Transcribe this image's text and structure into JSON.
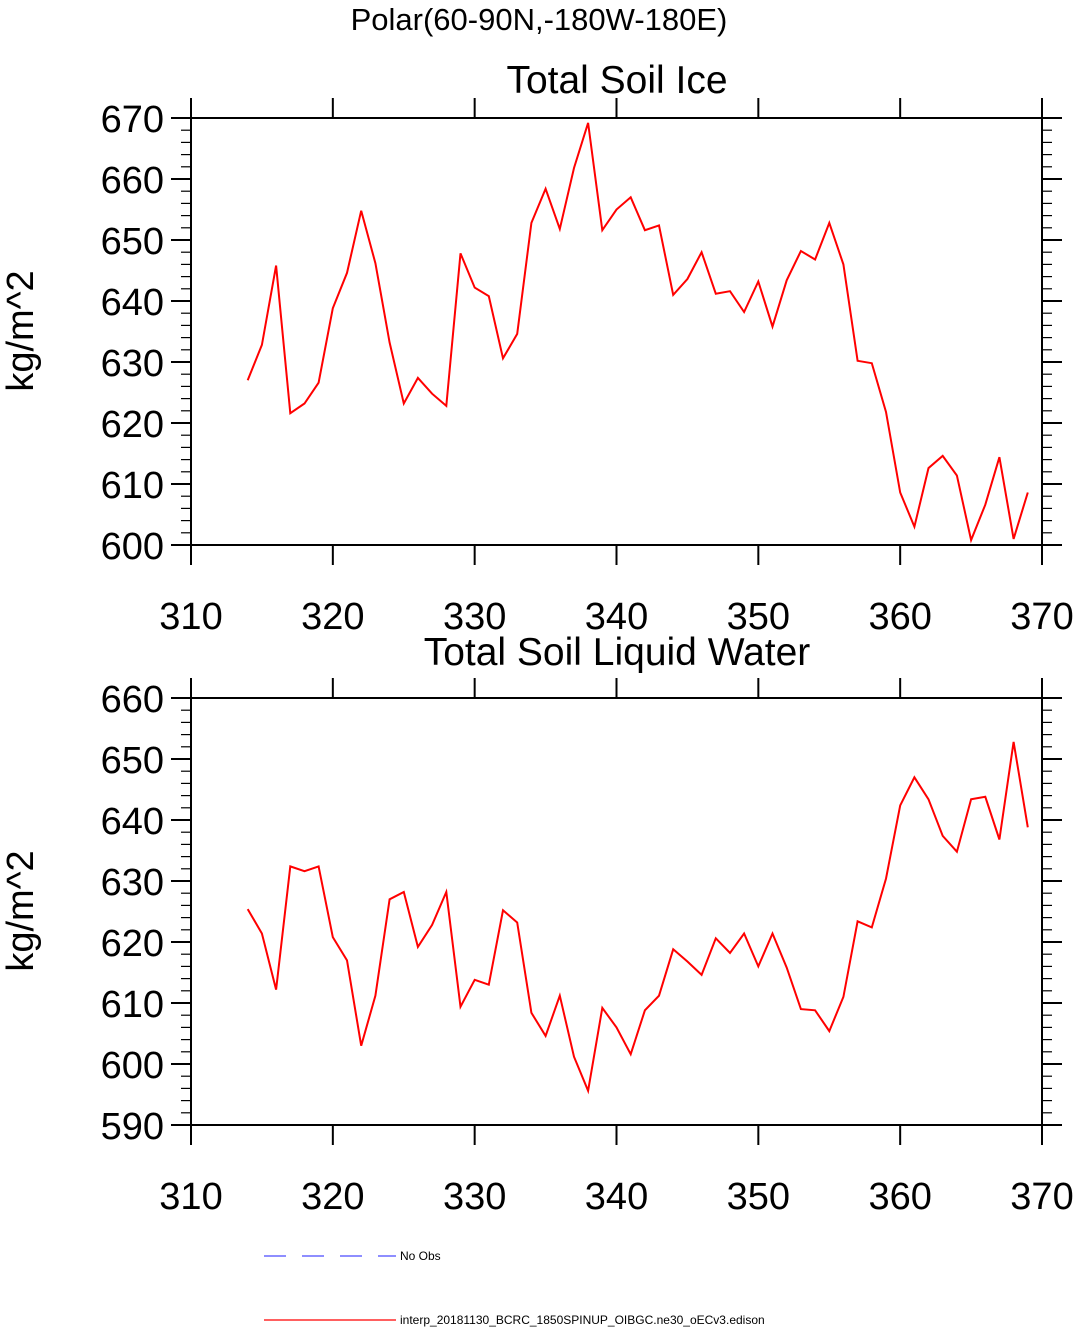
{
  "figure": {
    "main_title": "Polar(60-90N,-180W-180E)"
  },
  "chart_data": [
    {
      "type": "line",
      "title": "Total Soil Ice",
      "xlabel": "",
      "ylabel": "kg/m^2",
      "xlim": [
        310,
        370
      ],
      "ylim": [
        600,
        670
      ],
      "xticks": [
        310,
        320,
        330,
        340,
        350,
        360,
        370
      ],
      "yticks": [
        600,
        610,
        620,
        630,
        640,
        650,
        660,
        670
      ],
      "series": [
        {
          "name": "interp_20181130_BCRC_1850SPINUP_OIBGC.ne30_oECv3.edison",
          "color": "#ff0000",
          "x": [
            314,
            315,
            316,
            317,
            318,
            319,
            320,
            321,
            322,
            323,
            324,
            325,
            326,
            327,
            328,
            329,
            330,
            331,
            332,
            333,
            334,
            335,
            336,
            337,
            338,
            339,
            340,
            341,
            342,
            343,
            344,
            345,
            346,
            347,
            348,
            349,
            350,
            351,
            352,
            353,
            354,
            355,
            356,
            357,
            358,
            359,
            360,
            361,
            362,
            363,
            364,
            365,
            366,
            367,
            368,
            369
          ],
          "values": [
            627,
            632.8,
            645.8,
            621.6,
            623.2,
            626.6,
            638.8,
            644.6,
            654.8,
            646.2,
            633.2,
            623.2,
            627.4,
            624.8,
            622.8,
            647.8,
            642.2,
            640.8,
            630.6,
            634.6,
            652.8,
            658.4,
            651.8,
            661.8,
            669.2,
            651.6,
            655.0,
            657.0,
            651.6,
            652.4,
            641.0,
            643.6,
            648.0,
            641.2,
            641.6,
            638.2,
            643.2,
            635.8,
            643.4,
            648.2,
            646.8,
            652.8,
            646.0,
            630.2,
            629.8,
            621.8,
            608.6,
            603.0,
            612.6,
            614.6,
            611.4,
            600.8,
            606.6,
            614.4,
            601.0,
            608.6
          ]
        }
      ]
    },
    {
      "type": "line",
      "title": "Total Soil Liquid Water",
      "xlabel": "",
      "ylabel": "kg/m^2",
      "xlim": [
        310,
        370
      ],
      "ylim": [
        590,
        660
      ],
      "xticks": [
        310,
        320,
        330,
        340,
        350,
        360,
        370
      ],
      "yticks": [
        590,
        600,
        610,
        620,
        630,
        640,
        650,
        660
      ],
      "series": [
        {
          "name": "interp_20181130_BCRC_1850SPINUP_OIBGC.ne30_oECv3.edison",
          "color": "#ff0000",
          "x": [
            314,
            315,
            316,
            317,
            318,
            319,
            320,
            321,
            322,
            323,
            324,
            325,
            326,
            327,
            328,
            329,
            330,
            331,
            332,
            333,
            334,
            335,
            336,
            337,
            338,
            339,
            340,
            341,
            342,
            343,
            344,
            345,
            346,
            347,
            348,
            349,
            350,
            351,
            352,
            353,
            354,
            355,
            356,
            357,
            358,
            359,
            360,
            361,
            362,
            363,
            364,
            365,
            366,
            367,
            368,
            369
          ],
          "values": [
            625.4,
            621.4,
            612.2,
            632.4,
            631.6,
            632.4,
            620.8,
            617.0,
            603.0,
            611.2,
            627.0,
            628.2,
            619.2,
            622.8,
            628.2,
            609.4,
            613.8,
            613.0,
            625.2,
            623.2,
            608.4,
            604.6,
            611.2,
            601.2,
            595.6,
            609.2,
            606.0,
            601.6,
            608.8,
            611.2,
            618.8,
            616.8,
            614.6,
            620.6,
            618.2,
            621.4,
            616.0,
            621.4,
            615.8,
            609.0,
            608.8,
            605.4,
            611.0,
            623.4,
            622.4,
            630.4,
            642.4,
            647.0,
            643.4,
            637.4,
            634.8,
            643.4,
            643.8,
            636.8,
            652.8,
            638.8
          ]
        }
      ]
    }
  ],
  "legend": {
    "items": [
      {
        "label": "No Obs",
        "color": "#4b4bff",
        "style": "dashed"
      },
      {
        "label": "interp_20181130_BCRC_1850SPINUP_OIBGC.ne30_oECv3.edison",
        "color": "#ff0000",
        "style": "solid"
      }
    ]
  }
}
